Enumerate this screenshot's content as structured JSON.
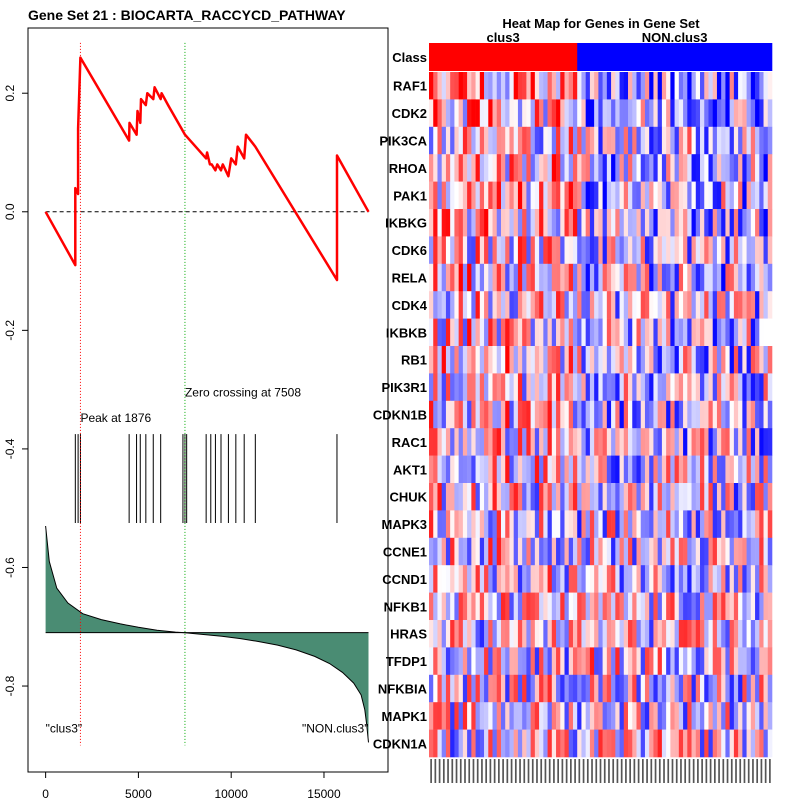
{
  "chart_data": [
    {
      "type": "line",
      "title": "Gene Set  21 : BIOCARTA_RACCYCD_PATHWAY",
      "x_ticks": [
        "0",
        "5000",
        "10000",
        "15000"
      ],
      "x_tick_values": [
        0,
        5000,
        10000,
        15000
      ],
      "y_ticks": [
        "0.2",
        "0.0",
        "-0.2",
        "-0.4",
        "-0.6",
        "-0.8"
      ],
      "y_tick_values": [
        0.2,
        0.0,
        -0.2,
        -0.4,
        -0.6,
        -0.8
      ],
      "xlim": [
        -950,
        18450
      ],
      "ylim": [
        -0.945,
        0.31
      ],
      "enrichment_score": [
        [
          0,
          0.0
        ],
        [
          1600,
          -0.09
        ],
        [
          1600,
          0.04
        ],
        [
          1750,
          0.03
        ],
        [
          1750,
          0.14
        ],
        [
          1876,
          0.26
        ],
        [
          4500,
          0.12
        ],
        [
          4520,
          0.15
        ],
        [
          4900,
          0.13
        ],
        [
          4950,
          0.17
        ],
        [
          5100,
          0.15
        ],
        [
          5140,
          0.19
        ],
        [
          5400,
          0.18
        ],
        [
          5480,
          0.2
        ],
        [
          5800,
          0.19
        ],
        [
          5870,
          0.21
        ],
        [
          6200,
          0.19
        ],
        [
          6250,
          0.2
        ],
        [
          6600,
          0.18
        ],
        [
          7508,
          0.13
        ],
        [
          8650,
          0.09
        ],
        [
          8700,
          0.1
        ],
        [
          8850,
          0.08
        ],
        [
          8950,
          0.08
        ],
        [
          9150,
          0.07
        ],
        [
          9250,
          0.08
        ],
        [
          9450,
          0.07
        ],
        [
          9550,
          0.08
        ],
        [
          9850,
          0.06
        ],
        [
          10000,
          0.09
        ],
        [
          10250,
          0.08
        ],
        [
          10350,
          0.11
        ],
        [
          10700,
          0.09
        ],
        [
          10800,
          0.13
        ],
        [
          11300,
          0.11
        ],
        [
          15700,
          -0.115
        ],
        [
          15700,
          0.095
        ],
        [
          17400,
          0.0
        ]
      ],
      "peak_x": 1876,
      "zero_crossing_x": 7508,
      "peak_label": "Peak at 1876",
      "zero_crossing_label": "Zero crossing at 7508",
      "hit_positions": [
        1600,
        1750,
        1876,
        4500,
        4900,
        5100,
        5400,
        5800,
        6200,
        7400,
        7508,
        7600,
        8650,
        8900,
        9150,
        9450,
        9850,
        10250,
        10700,
        11300,
        15700
      ],
      "hit_band_y": [
        -0.525,
        -0.375
      ],
      "ranked_metric_baseline": -0.71,
      "ranked_metric_curve": [
        [
          0,
          -0.53
        ],
        [
          200,
          -0.59
        ],
        [
          600,
          -0.635
        ],
        [
          1200,
          -0.66
        ],
        [
          2000,
          -0.678
        ],
        [
          3000,
          -0.688
        ],
        [
          4000,
          -0.695
        ],
        [
          5000,
          -0.701
        ],
        [
          6000,
          -0.706
        ],
        [
          7000,
          -0.709
        ],
        [
          7508,
          -0.71
        ],
        [
          8500,
          -0.713
        ],
        [
          9500,
          -0.716
        ],
        [
          10500,
          -0.72
        ],
        [
          11500,
          -0.725
        ],
        [
          12500,
          -0.731
        ],
        [
          13500,
          -0.739
        ],
        [
          14500,
          -0.75
        ],
        [
          15300,
          -0.762
        ],
        [
          16000,
          -0.777
        ],
        [
          16600,
          -0.795
        ],
        [
          17000,
          -0.815
        ],
        [
          17200,
          -0.84
        ],
        [
          17300,
          -0.865
        ],
        [
          17400,
          -0.895
        ]
      ],
      "left_class_label": "\"clus3\"",
      "right_class_label": "\"NON.clus3\"",
      "colors": {
        "es_line": "#ff0000",
        "peak_line": "#ff0000",
        "zero_line": "#00aa00",
        "fill": "#4a8c73",
        "hits": "#000000"
      }
    },
    {
      "type": "heatmap",
      "title": "Heat Map for Genes in Gene Set",
      "class_row_label": "Class",
      "class_groups": [
        {
          "name": "clus3",
          "count": 35,
          "color": "#ff0000"
        },
        {
          "name": "NON.clus3",
          "count": 46,
          "color": "#0000ff"
        }
      ],
      "genes": [
        "RAF1",
        "CDK2",
        "PIK3CA",
        "RHOA",
        "PAK1",
        "IKBKG",
        "CDK6",
        "RELA",
        "CDK4",
        "IKBKB",
        "RB1",
        "PIK3R1",
        "CDKN1B",
        "RAC1",
        "AKT1",
        "CHUK",
        "MAPK3",
        "CCNE1",
        "CCND1",
        "NFKB1",
        "HRAS",
        "TFDP1",
        "NFKBIA",
        "MAPK1",
        "CDKN1A"
      ],
      "row_bias": [
        0.55,
        0.4,
        0.15,
        0.35,
        0.3,
        0.3,
        0.2,
        0.25,
        0.15,
        0.2,
        0.25,
        0.2,
        0.2,
        0.2,
        0.15,
        0.1,
        0.1,
        0.1,
        0.05,
        0.05,
        0.0,
        -0.1,
        0.05,
        0.0,
        -0.05
      ],
      "column_count": 81,
      "value_range": [
        -1,
        1
      ],
      "seed": 21,
      "colors": {
        "low": "#0000ff",
        "mid": "#ffffff",
        "high": "#ff0000"
      }
    }
  ]
}
